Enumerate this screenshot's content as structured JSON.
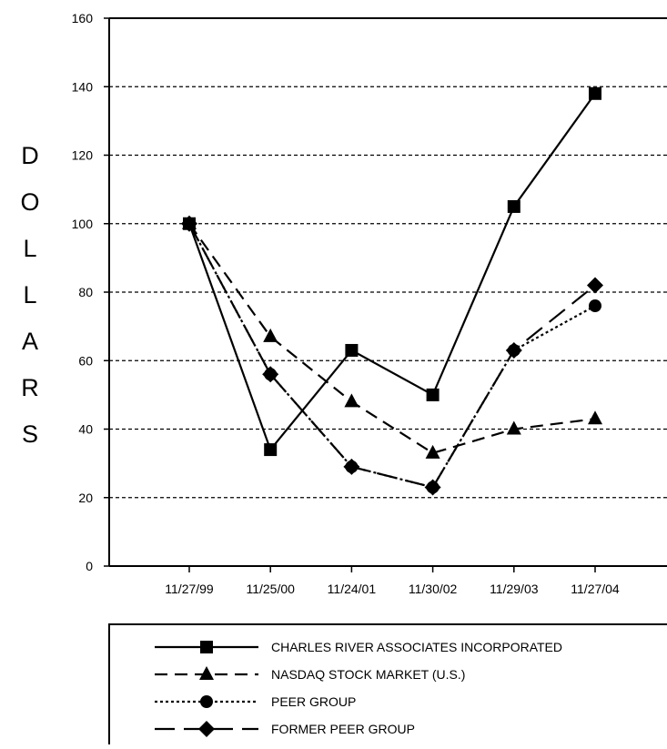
{
  "chart_data": {
    "type": "line",
    "ylabel": "DOLLARS",
    "xlabel": "",
    "title": "",
    "categories": [
      "11/27/99",
      "11/25/00",
      "11/24/01",
      "11/30/02",
      "11/29/03",
      "11/27/04"
    ],
    "ylim": [
      0,
      160
    ],
    "yticks": [
      0,
      20,
      40,
      60,
      80,
      100,
      120,
      140,
      160
    ],
    "grid": "horizontal dashed",
    "legend_placement": "bottom",
    "series": [
      {
        "name": "CHARLES RIVER ASSOCIATES INCORPORATED",
        "values": [
          100,
          34,
          63,
          50,
          105,
          138
        ],
        "marker": "square",
        "dash": "solid"
      },
      {
        "name": "NASDAQ STOCK MARKET (U.S.)",
        "values": [
          100,
          67,
          48,
          33,
          40,
          43
        ],
        "marker": "triangle",
        "dash": "dashed"
      },
      {
        "name": "PEER GROUP",
        "values": [
          100,
          56,
          29,
          23,
          63,
          76
        ],
        "marker": "circle",
        "dash": "dotted"
      },
      {
        "name": "FORMER PEER GROUP",
        "values": [
          100,
          56,
          29,
          23,
          63,
          82
        ],
        "marker": "diamond",
        "dash": "longdash"
      }
    ],
    "colors": {
      "line": "#000000",
      "grid": "#000000",
      "background": "#ffffff"
    }
  }
}
